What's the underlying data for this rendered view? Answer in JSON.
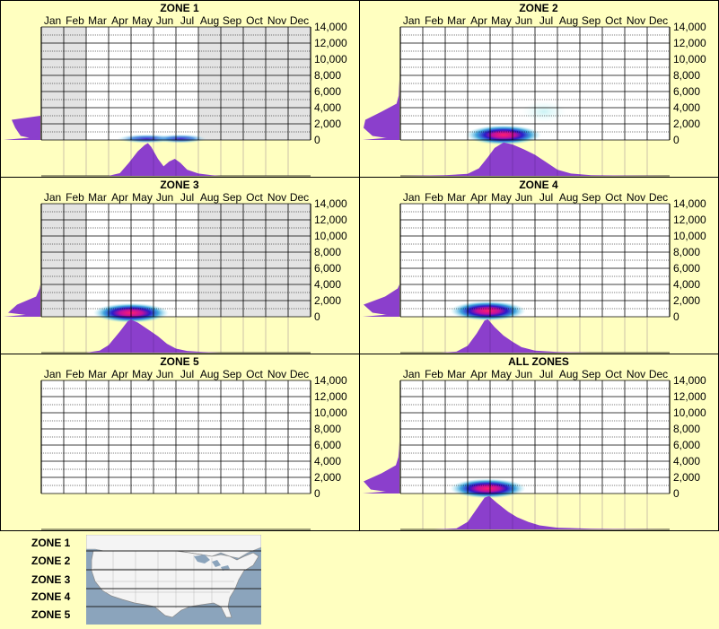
{
  "chart_data": [
    {
      "type": "heatmap",
      "title": "ZONE 1",
      "months": [
        "Jan",
        "Feb",
        "Mar",
        "Apr",
        "May",
        "Jun",
        "Jul",
        "Aug",
        "Sep",
        "Oct",
        "Nov",
        "Dec"
      ],
      "y_ticks": [
        "14,000",
        "12,000",
        "10,000",
        "8,000",
        "6,000",
        "4,000",
        "2,000",
        "0"
      ],
      "ylim": [
        0,
        14000
      ],
      "active_months": [
        2.0,
        7.0
      ],
      "blobs": [
        {
          "month": 4.7,
          "elevation": 150,
          "intensity": 0.55
        },
        {
          "month": 6.2,
          "elevation": 150,
          "intensity": 0.35
        }
      ],
      "elevation_profile": [
        0.55,
        0.7,
        0.8
      ],
      "seasonal_profile": [
        [
          3.0,
          0.0
        ],
        [
          3.5,
          0.08
        ],
        [
          3.9,
          0.38
        ],
        [
          4.3,
          0.72
        ],
        [
          4.6,
          0.9
        ],
        [
          4.75,
          0.96
        ],
        [
          4.9,
          0.85
        ],
        [
          5.2,
          0.5
        ],
        [
          5.45,
          0.28
        ],
        [
          5.7,
          0.42
        ],
        [
          5.95,
          0.5
        ],
        [
          6.2,
          0.38
        ],
        [
          6.5,
          0.18
        ],
        [
          7.0,
          0.07
        ],
        [
          7.6,
          0.02
        ],
        [
          8.0,
          0.0
        ]
      ]
    },
    {
      "type": "heatmap",
      "title": "ZONE 2",
      "months": [
        "Jan",
        "Feb",
        "Mar",
        "Apr",
        "May",
        "Jun",
        "Jul",
        "Aug",
        "Sep",
        "Oct",
        "Nov",
        "Dec"
      ],
      "y_ticks": [
        "14,000",
        "12,000",
        "10,000",
        "8,000",
        "6,000",
        "4,000",
        "2,000",
        "0"
      ],
      "ylim": [
        0,
        14000
      ],
      "active_months": [
        0.0,
        12.0
      ],
      "blobs": [
        {
          "month": 4.6,
          "elevation": 400,
          "intensity": 1.0
        },
        {
          "month": 6.4,
          "elevation": 3500,
          "intensity": 0.12
        }
      ],
      "elevation_profile": [
        0.75,
        1.0,
        0.95,
        0.5,
        0.08,
        0.02,
        0.01,
        0.0
      ],
      "seasonal_profile": [
        [
          0.0,
          0.0
        ],
        [
          1.0,
          0.01
        ],
        [
          2.0,
          0.02
        ],
        [
          3.0,
          0.06
        ],
        [
          3.5,
          0.22
        ],
        [
          3.9,
          0.55
        ],
        [
          4.2,
          0.82
        ],
        [
          4.6,
          0.98
        ],
        [
          5.0,
          0.92
        ],
        [
          5.5,
          0.78
        ],
        [
          6.0,
          0.62
        ],
        [
          6.5,
          0.4
        ],
        [
          7.0,
          0.18
        ],
        [
          7.6,
          0.07
        ],
        [
          8.5,
          0.02
        ],
        [
          10.0,
          0.01
        ],
        [
          12.0,
          0.0
        ]
      ]
    },
    {
      "type": "heatmap",
      "title": "ZONE 3",
      "months": [
        "Jan",
        "Feb",
        "Mar",
        "Apr",
        "May",
        "Jun",
        "Jul",
        "Aug",
        "Sep",
        "Oct",
        "Nov",
        "Dec"
      ],
      "y_ticks": [
        "14,000",
        "12,000",
        "10,000",
        "8,000",
        "6,000",
        "4,000",
        "2,000",
        "0"
      ],
      "ylim": [
        0,
        14000
      ],
      "active_months": [
        2.0,
        7.0
      ],
      "blobs": [
        {
          "month": 4.0,
          "elevation": 250,
          "intensity": 1.0
        }
      ],
      "elevation_profile": [
        0.9,
        0.65,
        0.12,
        0.02
      ],
      "seasonal_profile": [
        [
          2.0,
          0.0
        ],
        [
          2.6,
          0.06
        ],
        [
          3.0,
          0.22
        ],
        [
          3.5,
          0.62
        ],
        [
          3.85,
          0.92
        ],
        [
          4.0,
          0.97
        ],
        [
          4.3,
          0.88
        ],
        [
          4.8,
          0.66
        ],
        [
          5.2,
          0.48
        ],
        [
          5.6,
          0.26
        ],
        [
          6.0,
          0.12
        ],
        [
          6.5,
          0.05
        ],
        [
          7.2,
          0.02
        ],
        [
          8.0,
          0.0
        ]
      ]
    },
    {
      "type": "heatmap",
      "title": "ZONE 4",
      "months": [
        "Jan",
        "Feb",
        "Mar",
        "Apr",
        "May",
        "Jun",
        "Jul",
        "Aug",
        "Sep",
        "Oct",
        "Nov",
        "Dec"
      ],
      "y_ticks": [
        "14,000",
        "12,000",
        "10,000",
        "8,000",
        "6,000",
        "4,000",
        "2,000",
        "0"
      ],
      "ylim": [
        0,
        14000
      ],
      "active_months": [
        0.0,
        12.0
      ],
      "blobs": [
        {
          "month": 3.9,
          "elevation": 500,
          "intensity": 1.0
        }
      ],
      "elevation_profile": [
        0.75,
        1.0,
        0.4,
        0.05
      ],
      "seasonal_profile": [
        [
          1.8,
          0.0
        ],
        [
          2.5,
          0.03
        ],
        [
          3.0,
          0.2
        ],
        [
          3.4,
          0.56
        ],
        [
          3.75,
          0.94
        ],
        [
          3.9,
          0.98
        ],
        [
          4.2,
          0.75
        ],
        [
          4.6,
          0.5
        ],
        [
          5.0,
          0.32
        ],
        [
          5.4,
          0.16
        ],
        [
          6.0,
          0.06
        ],
        [
          7.0,
          0.02
        ],
        [
          8.5,
          0.0
        ]
      ]
    },
    {
      "type": "heatmap",
      "title": "ZONE 5",
      "months": [
        "Jan",
        "Feb",
        "Mar",
        "Apr",
        "May",
        "Jun",
        "Jul",
        "Aug",
        "Sep",
        "Oct",
        "Nov",
        "Dec"
      ],
      "y_ticks": [
        "14,000",
        "12,000",
        "10,000",
        "8,000",
        "6,000",
        "4,000",
        "2,000",
        "0"
      ],
      "ylim": [
        0,
        14000
      ],
      "active_months": [
        0.0,
        12.0
      ],
      "no_data": true,
      "blobs": [],
      "elevation_profile": [],
      "seasonal_profile": []
    },
    {
      "type": "heatmap",
      "title": "ALL ZONES",
      "months": [
        "Jan",
        "Feb",
        "Mar",
        "Apr",
        "May",
        "Jun",
        "Jul",
        "Aug",
        "Sep",
        "Oct",
        "Nov",
        "Dec"
      ],
      "y_ticks": [
        "14,000",
        "12,000",
        "10,000",
        "8,000",
        "6,000",
        "4,000",
        "2,000",
        "0"
      ],
      "ylim": [
        0,
        14000
      ],
      "active_months": [
        0.0,
        12.0
      ],
      "blobs": [
        {
          "month": 3.9,
          "elevation": 400,
          "intensity": 1.0
        }
      ],
      "elevation_profile": [
        0.8,
        1.0,
        0.5,
        0.1,
        0.03,
        0.01,
        0.0,
        0.0
      ],
      "seasonal_profile": [
        [
          1.5,
          0.0
        ],
        [
          2.5,
          0.03
        ],
        [
          3.0,
          0.22
        ],
        [
          3.4,
          0.6
        ],
        [
          3.75,
          0.93
        ],
        [
          3.95,
          0.98
        ],
        [
          4.3,
          0.78
        ],
        [
          4.8,
          0.52
        ],
        [
          5.2,
          0.36
        ],
        [
          5.7,
          0.22
        ],
        [
          6.2,
          0.12
        ],
        [
          7.0,
          0.05
        ],
        [
          8.5,
          0.02
        ],
        [
          10.0,
          0.01
        ],
        [
          12.0,
          0.0
        ]
      ]
    }
  ],
  "legend": {
    "zones": [
      "ZONE 1",
      "ZONE 2",
      "ZONE 3",
      "ZONE 4",
      "ZONE 5"
    ]
  },
  "colors": {
    "background": "#FFFFC0",
    "active": "#FFFFFF",
    "inactive": "#E3E3E3",
    "profile": "#8B3FCC",
    "ocean": "#8BA4BC",
    "land": "#F4F4F4"
  }
}
